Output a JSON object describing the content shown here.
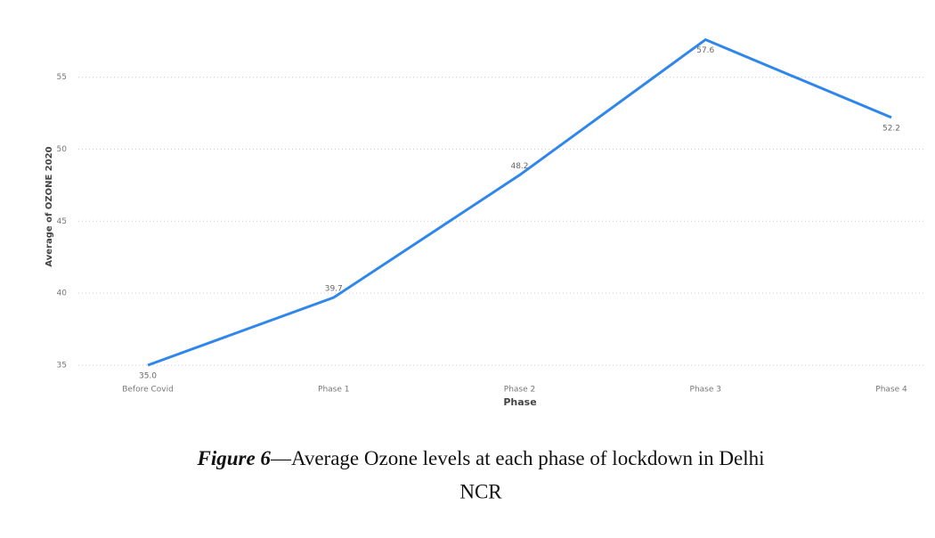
{
  "chart_data": {
    "type": "line",
    "x_label": "Phase",
    "y_label": "Average of OZONE 2020",
    "categories": [
      "Before Covid",
      "Phase 1",
      "Phase 2",
      "Phase 3",
      "Phase 4"
    ],
    "values": [
      35.0,
      39.7,
      48.2,
      57.6,
      52.2
    ],
    "value_labels": [
      "35.0",
      "39.7",
      "48.2",
      "57.6",
      "52.2"
    ],
    "color": "#2f86eb",
    "ylim": [
      35,
      58.5
    ],
    "yticks": [
      35,
      40,
      45,
      50,
      55
    ],
    "grid": true
  },
  "caption": {
    "label": "Figure 6",
    "lines": [
      "—Average Ozone levels at each phase of lockdown in Delhi",
      "NCR"
    ]
  }
}
